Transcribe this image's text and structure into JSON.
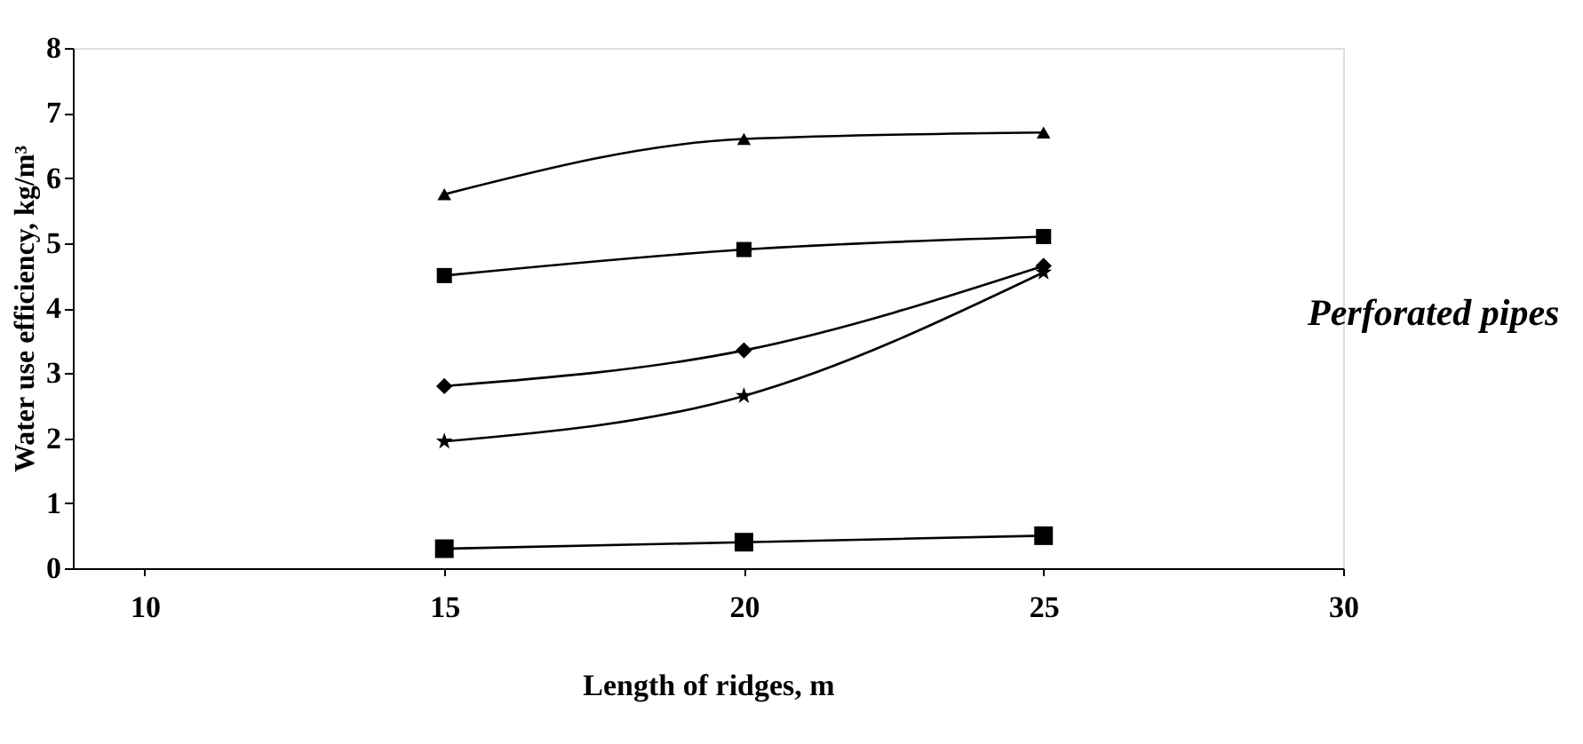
{
  "chart_data": {
    "type": "line",
    "xlabel": "Length of ridges, m",
    "ylabel": "Water use efficiency, kg/m³",
    "x": [
      15,
      20,
      25
    ],
    "series": [
      {
        "color": "#000000",
        "marker": "triangle",
        "values": [
          5.75,
          6.6,
          6.7
        ]
      },
      {
        "color": "#000000",
        "marker": "square",
        "values": [
          4.5,
          4.9,
          5.1
        ]
      },
      {
        "color": "#000000",
        "marker": "diamond",
        "values": [
          2.8,
          3.35,
          4.65
        ]
      },
      {
        "color": "#000000",
        "marker": "star",
        "values": [
          1.95,
          2.65,
          4.55
        ]
      },
      {
        "color": "#000000",
        "marker": "square",
        "values": [
          0.3,
          0.4,
          0.5
        ]
      }
    ],
    "xlim": [
      8.8,
      30
    ],
    "xticks": [
      10,
      15,
      20,
      25,
      30
    ],
    "ylim": [
      0,
      8
    ],
    "yticks": [
      0,
      1,
      2,
      3,
      4,
      5,
      6,
      7,
      8
    ],
    "annotations": [
      "Perforated pipes"
    ],
    "grid": false,
    "legend": false,
    "line_style": "solid"
  }
}
